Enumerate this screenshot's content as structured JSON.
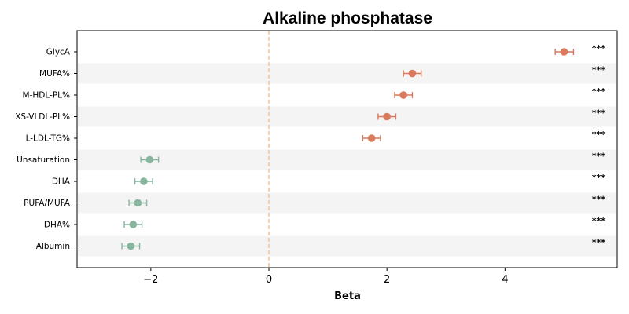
{
  "chart_data": {
    "type": "scatter",
    "subtype": "forest-plot",
    "title": "Alkaline phosphatase",
    "xlabel": "Beta",
    "ylabel": "",
    "xlim": [
      -3.25,
      5.9
    ],
    "xticks": [
      -2,
      0,
      2,
      4
    ],
    "xtick_labels": [
      "−2",
      "0",
      "2",
      "4"
    ],
    "reference_line": {
      "x": 0,
      "style": "dashed",
      "color": "#f5c58a"
    },
    "grid": false,
    "row_shading": {
      "color": "#f4f4f4",
      "pattern": "alternating"
    },
    "colors": {
      "positive": "#d97a5c",
      "negative": "#86b49c",
      "axis": "#000000"
    },
    "rows": [
      {
        "label": "GlycA",
        "beta": 5.0,
        "ci": [
          4.85,
          5.16
        ],
        "sig": "***"
      },
      {
        "label": "MUFA%",
        "beta": 2.43,
        "ci": [
          2.28,
          2.58
        ],
        "sig": "***"
      },
      {
        "label": "M-HDL-PL%",
        "beta": 2.28,
        "ci": [
          2.13,
          2.43
        ],
        "sig": "***"
      },
      {
        "label": "XS-VLDL-PL%",
        "beta": 2.0,
        "ci": [
          1.85,
          2.15
        ],
        "sig": "***"
      },
      {
        "label": "L-LDL-TG%",
        "beta": 1.74,
        "ci": [
          1.59,
          1.89
        ],
        "sig": "***"
      },
      {
        "label": "Unsaturation",
        "beta": -2.02,
        "ci": [
          -2.17,
          -1.87
        ],
        "sig": "***"
      },
      {
        "label": "DHA",
        "beta": -2.12,
        "ci": [
          -2.27,
          -1.97
        ],
        "sig": "***"
      },
      {
        "label": "PUFA/MUFA",
        "beta": -2.22,
        "ci": [
          -2.37,
          -2.07
        ],
        "sig": "***"
      },
      {
        "label": "DHA%",
        "beta": -2.3,
        "ci": [
          -2.45,
          -2.15
        ],
        "sig": "***"
      },
      {
        "label": "Albumin",
        "beta": -2.34,
        "ci": [
          -2.49,
          -2.19
        ],
        "sig": "***"
      }
    ]
  }
}
